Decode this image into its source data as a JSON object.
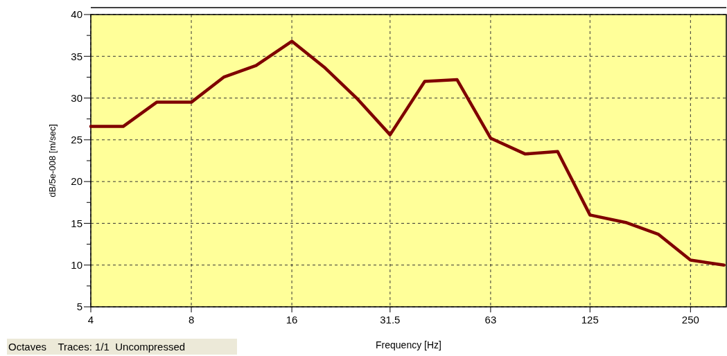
{
  "chart_data": {
    "type": "line",
    "xlabel": "Frequency [Hz]",
    "ylabel": "dB/5e-008 [m/sec]",
    "log": "x",
    "x": [
      4,
      5,
      6.3,
      8,
      10,
      12.5,
      16,
      20,
      25,
      31.5,
      40,
      50,
      63,
      80,
      100,
      125,
      160,
      200,
      250,
      315
    ],
    "series": [
      {
        "color": "#7f0000",
        "values": [
          26.6,
          26.6,
          29.5,
          29.5,
          32.5,
          33.9,
          36.8,
          33.7,
          30,
          25.6,
          32,
          32.2,
          25.2,
          23.3,
          23.6,
          16,
          15.1,
          13.7,
          10.6,
          10
        ]
      }
    ],
    "xlim": [
      4,
      320
    ],
    "xticks": [
      4,
      8,
      16,
      31.5,
      63,
      125,
      250
    ],
    "ylim": [
      5,
      40
    ],
    "yticks": [
      5,
      {
        "value": 7.5,
        "label": null
      },
      10,
      {
        "value": 12.5,
        "label": null
      },
      15,
      {
        "value": 17.5,
        "label": null
      },
      20,
      {
        "value": 22.5,
        "label": null
      },
      25,
      {
        "value": 27.5,
        "label": null
      },
      30,
      {
        "value": 32.5,
        "label": null
      },
      35,
      {
        "value": 37.5,
        "label": null
      },
      40
    ],
    "grid": true,
    "line_style": "solid",
    "marker": "none",
    "annotations": [
      "Octaves    Traces: 1/1  Uncompressed"
    ]
  }
}
